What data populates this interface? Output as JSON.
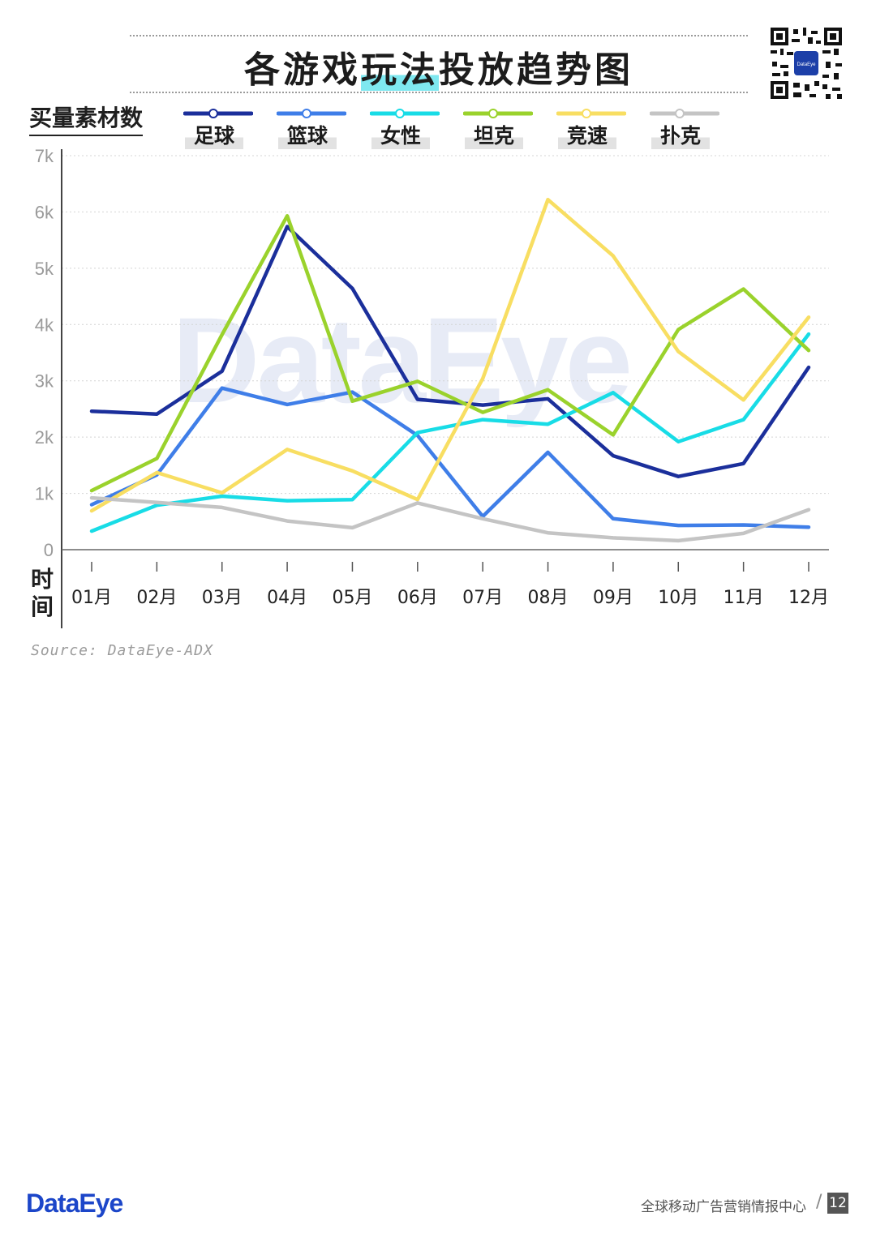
{
  "title": {
    "part1": "各游戏",
    "highlight": "玩法",
    "part2": "投放趋势图"
  },
  "y_axis_title": "买量素材数",
  "x_axis_title": "时间",
  "source": "Source: DataEye-ADX",
  "watermark": "DataEye",
  "qr_logo_text": "DataEye",
  "footer": {
    "logo": "DataEye",
    "text": "全球移动广告营销情报中心",
    "separator": "/",
    "page": "12"
  },
  "chart_data": {
    "type": "line",
    "categories": [
      "01月",
      "02月",
      "03月",
      "04月",
      "05月",
      "06月",
      "07月",
      "08月",
      "09月",
      "10月",
      "11月",
      "12月"
    ],
    "ylim": [
      0,
      7000
    ],
    "yticks": [
      0,
      1000,
      2000,
      3000,
      4000,
      5000,
      6000,
      7000
    ],
    "ytick_labels": [
      "0",
      "1k",
      "2k",
      "3k",
      "4k",
      "5k",
      "6k",
      "7k"
    ],
    "grid": true,
    "legend_position": "top",
    "series": [
      {
        "name": "足球",
        "color": "#1b2f9b",
        "values": [
          2460,
          2410,
          3170,
          5740,
          4640,
          2670,
          2570,
          2680,
          1670,
          1300,
          1530,
          3240
        ]
      },
      {
        "name": "篮球",
        "color": "#3f7ee8",
        "values": [
          800,
          1330,
          2870,
          2580,
          2800,
          2030,
          590,
          1730,
          550,
          430,
          440,
          400
        ]
      },
      {
        "name": "女性",
        "color": "#18dce6",
        "values": [
          330,
          790,
          950,
          870,
          890,
          2080,
          2310,
          2230,
          2790,
          1920,
          2310,
          3830
        ]
      },
      {
        "name": "坦克",
        "color": "#9ad22c",
        "values": [
          1050,
          1620,
          3820,
          5930,
          2640,
          2990,
          2440,
          2840,
          2040,
          3910,
          4630,
          3540
        ]
      },
      {
        "name": "竞速",
        "color": "#f8de62",
        "values": [
          690,
          1370,
          1010,
          1780,
          1400,
          890,
          3040,
          6220,
          5220,
          3520,
          2660,
          4130
        ]
      },
      {
        "name": "扑克",
        "color": "#c4c4c4",
        "values": [
          920,
          840,
          750,
          510,
          390,
          830,
          550,
          300,
          210,
          160,
          290,
          710
        ]
      }
    ]
  }
}
